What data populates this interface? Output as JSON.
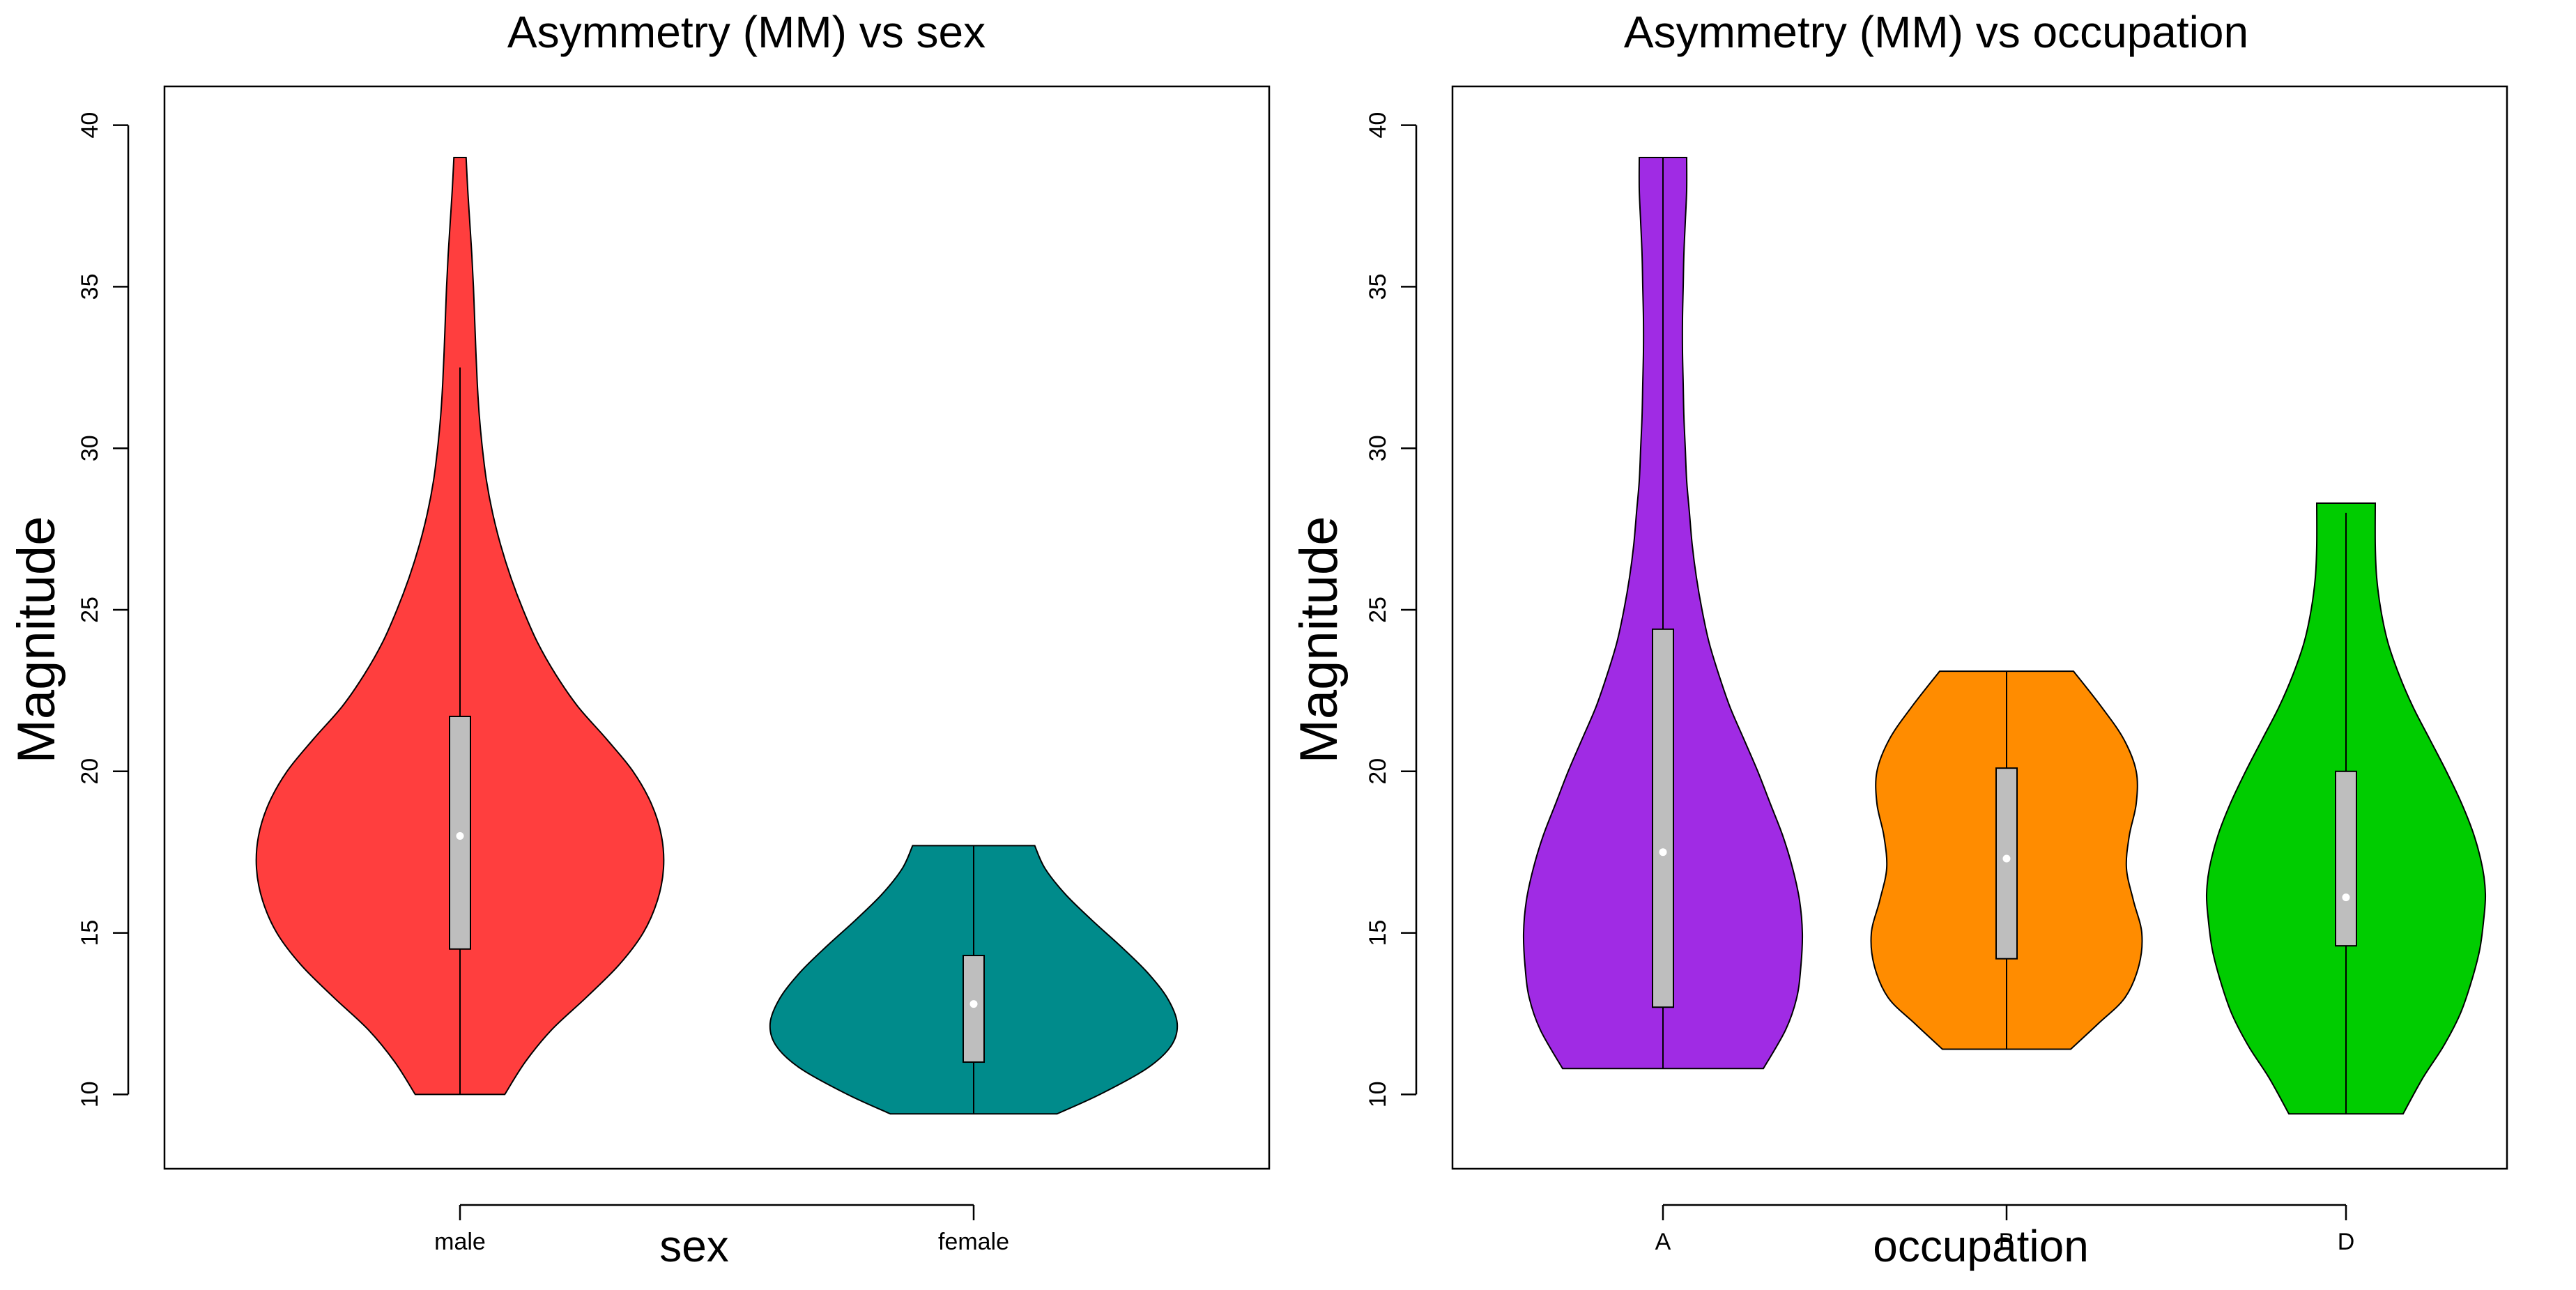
{
  "chart_data": [
    {
      "type": "violin",
      "title": "Asymmetry (MM) vs sex",
      "xlabel": "sex",
      "ylabel": "Magnitude",
      "ylim": [
        7.7,
        41.2
      ],
      "yticks": [
        10,
        15,
        20,
        25,
        30,
        35,
        40
      ],
      "categories": [
        "male",
        "female"
      ],
      "series": [
        {
          "name": "male",
          "color": "#FF3E3E",
          "min": 10.0,
          "max": 39.0,
          "q1": 14.5,
          "median": 18.0,
          "q3": 21.7,
          "whisker_low": 10.0,
          "whisker_high": 32.5,
          "density": [
            [
              10.0,
              0.22
            ],
            [
              11.0,
              0.32
            ],
            [
              12.0,
              0.45
            ],
            [
              13.0,
              0.62
            ],
            [
              14.0,
              0.78
            ],
            [
              15.0,
              0.9
            ],
            [
              16.0,
              0.97
            ],
            [
              17.0,
              1.0
            ],
            [
              18.0,
              0.99
            ],
            [
              19.0,
              0.94
            ],
            [
              20.0,
              0.85
            ],
            [
              21.0,
              0.72
            ],
            [
              22.0,
              0.58
            ],
            [
              23.0,
              0.47
            ],
            [
              24.0,
              0.38
            ],
            [
              25.0,
              0.31
            ],
            [
              26.0,
              0.25
            ],
            [
              27.0,
              0.2
            ],
            [
              28.0,
              0.16
            ],
            [
              29.0,
              0.13
            ],
            [
              30.0,
              0.11
            ],
            [
              31.0,
              0.095
            ],
            [
              32.0,
              0.085
            ],
            [
              33.0,
              0.078
            ],
            [
              34.0,
              0.072
            ],
            [
              35.0,
              0.066
            ],
            [
              36.0,
              0.058
            ],
            [
              37.0,
              0.048
            ],
            [
              38.0,
              0.038
            ],
            [
              39.0,
              0.03
            ]
          ]
        },
        {
          "name": "female",
          "color": "#008B8B",
          "min": 9.4,
          "max": 17.7,
          "q1": 11.0,
          "median": 12.8,
          "q3": 14.3,
          "whisker_low": 9.4,
          "whisker_high": 17.7,
          "density": [
            [
              9.4,
              0.41
            ],
            [
              10.0,
              0.62
            ],
            [
              10.8,
              0.85
            ],
            [
              11.5,
              0.97
            ],
            [
              12.2,
              1.0
            ],
            [
              13.0,
              0.95
            ],
            [
              13.8,
              0.85
            ],
            [
              14.6,
              0.72
            ],
            [
              15.4,
              0.58
            ],
            [
              16.2,
              0.45
            ],
            [
              17.0,
              0.35
            ],
            [
              17.7,
              0.3
            ]
          ]
        }
      ]
    },
    {
      "type": "violin",
      "title": "Asymmetry (MM) vs occupation",
      "xlabel": "occupation",
      "ylabel": "Magnitude",
      "ylim": [
        7.7,
        41.2
      ],
      "yticks": [
        10,
        15,
        20,
        25,
        30,
        35,
        40
      ],
      "categories": [
        "A",
        "B",
        "D"
      ],
      "series": [
        {
          "name": "A",
          "color": "#A02BE4",
          "min": 10.8,
          "max": 39.0,
          "q1": 12.7,
          "median": 17.5,
          "q3": 24.4,
          "whisker_low": 10.8,
          "whisker_high": 39.0,
          "density": [
            [
              10.8,
              0.72
            ],
            [
              12.0,
              0.88
            ],
            [
              13.0,
              0.96
            ],
            [
              14.0,
              0.99
            ],
            [
              15.0,
              1.0
            ],
            [
              16.0,
              0.98
            ],
            [
              17.0,
              0.93
            ],
            [
              18.0,
              0.86
            ],
            [
              19.0,
              0.77
            ],
            [
              20.0,
              0.68
            ],
            [
              21.0,
              0.58
            ],
            [
              22.0,
              0.48
            ],
            [
              23.0,
              0.4
            ],
            [
              24.0,
              0.33
            ],
            [
              25.0,
              0.28
            ],
            [
              26.0,
              0.24
            ],
            [
              27.0,
              0.21
            ],
            [
              28.0,
              0.19
            ],
            [
              29.0,
              0.17
            ],
            [
              30.0,
              0.16
            ],
            [
              31.0,
              0.15
            ],
            [
              32.0,
              0.145
            ],
            [
              33.0,
              0.14
            ],
            [
              34.0,
              0.14
            ],
            [
              35.0,
              0.145
            ],
            [
              36.0,
              0.15
            ],
            [
              37.0,
              0.16
            ],
            [
              38.0,
              0.17
            ],
            [
              39.0,
              0.17
            ]
          ]
        },
        {
          "name": "B",
          "color": "#FF8C00",
          "min": 11.4,
          "max": 23.1,
          "q1": 14.2,
          "median": 17.3,
          "q3": 20.1,
          "whisker_low": 11.4,
          "whisker_high": 23.1,
          "density": [
            [
              11.4,
              0.46
            ],
            [
              12.2,
              0.66
            ],
            [
              13.0,
              0.85
            ],
            [
              14.0,
              0.95
            ],
            [
              15.0,
              0.97
            ],
            [
              16.0,
              0.91
            ],
            [
              17.0,
              0.86
            ],
            [
              18.0,
              0.88
            ],
            [
              19.0,
              0.93
            ],
            [
              20.0,
              0.93
            ],
            [
              21.0,
              0.84
            ],
            [
              22.0,
              0.68
            ],
            [
              23.1,
              0.48
            ]
          ]
        },
        {
          "name": "D",
          "color": "#00CC00",
          "min": 9.4,
          "max": 28.3,
          "q1": 14.6,
          "median": 16.1,
          "q3": 20.0,
          "whisker_low": 9.4,
          "whisker_high": 28.0,
          "density": [
            [
              9.4,
              0.41
            ],
            [
              10.5,
              0.55
            ],
            [
              11.5,
              0.7
            ],
            [
              12.5,
              0.82
            ],
            [
              13.5,
              0.9
            ],
            [
              14.5,
              0.96
            ],
            [
              15.5,
              0.99
            ],
            [
              16.2,
              1.0
            ],
            [
              17.0,
              0.98
            ],
            [
              18.0,
              0.92
            ],
            [
              19.0,
              0.83
            ],
            [
              20.0,
              0.72
            ],
            [
              21.0,
              0.6
            ],
            [
              22.0,
              0.48
            ],
            [
              23.0,
              0.38
            ],
            [
              24.0,
              0.3
            ],
            [
              25.0,
              0.25
            ],
            [
              26.0,
              0.22
            ],
            [
              27.0,
              0.21
            ],
            [
              28.3,
              0.21
            ]
          ]
        }
      ]
    }
  ]
}
